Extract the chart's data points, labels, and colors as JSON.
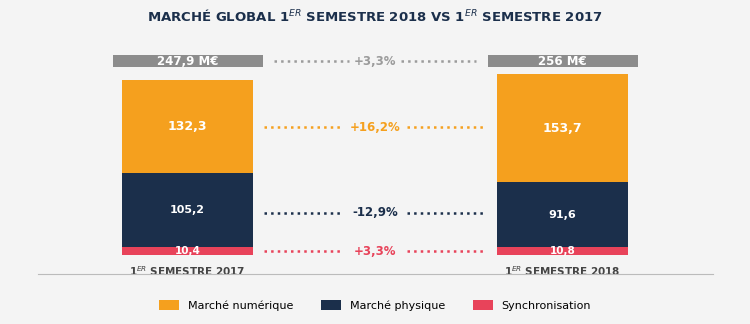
{
  "bars": {
    "2017": {
      "sync": 10.4,
      "physical": 105.2,
      "digital": 132.3,
      "total": 247.9,
      "total_label": "247,9 M€"
    },
    "2018": {
      "sync": 10.8,
      "physical": 91.6,
      "digital": 153.7,
      "total": 256.0,
      "total_label": "256 M€"
    }
  },
  "colors": {
    "digital": "#F5A01E",
    "physical": "#1B2F4B",
    "sync": "#E8435A",
    "total_box": "#8C8C8C",
    "bg": "#F4F4F4",
    "annot_gray": "#9B9B9B"
  },
  "annotations": {
    "total": "+3,3%",
    "digital": "+16,2%",
    "physical": "-12,9%",
    "sync": "+3,3%"
  },
  "legend": [
    {
      "label": "Marché numérique",
      "color": "#F5A01E"
    },
    {
      "label": "Marché physique",
      "color": "#1B2F4B"
    },
    {
      "label": "Synchronisation",
      "color": "#E8435A"
    }
  ],
  "bar_positions": [
    1.0,
    3.0
  ],
  "bar_width": 0.7,
  "xlim": [
    0,
    4
  ],
  "ylim": [
    -20,
    310
  ],
  "title": "MARCHÉ GLOBAL 1$^{ER}$ SEMESTRE 2018 VS 1$^{ER}$ SEMESTRE 2017"
}
